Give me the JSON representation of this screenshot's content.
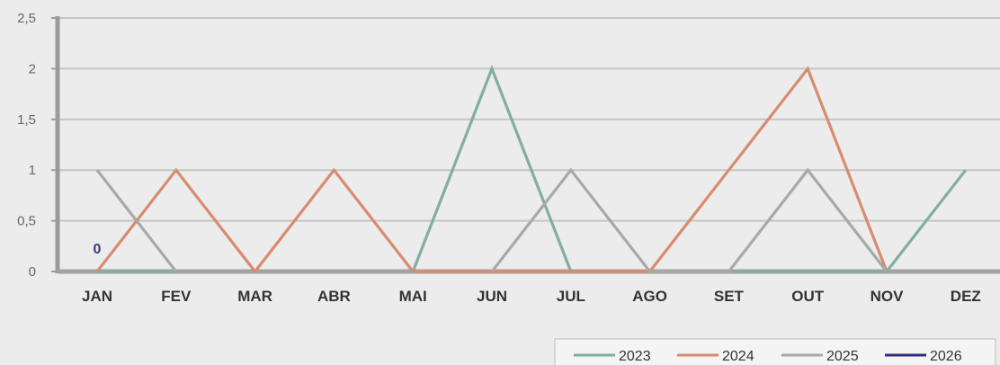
{
  "chart_data": {
    "type": "line",
    "categories": [
      "JAN",
      "FEV",
      "MAR",
      "ABR",
      "MAI",
      "JUN",
      "JUL",
      "AGO",
      "SET",
      "OUT",
      "NOV",
      "DEZ"
    ],
    "y_ticks": [
      "0",
      "0,5",
      "1",
      "1,5",
      "2",
      "2,5"
    ],
    "ylim": [
      0,
      2.5
    ],
    "grid": true,
    "legend_position": "bottom-right",
    "series": [
      {
        "name": "2023",
        "color": "#82aea0",
        "values": [
          0,
          0,
          null,
          null,
          0,
          2,
          0,
          null,
          0,
          0,
          0,
          1
        ]
      },
      {
        "name": "2024",
        "color": "#d78c6f",
        "values": [
          0,
          1,
          0,
          1,
          0,
          0,
          0,
          0,
          1,
          2,
          0,
          null
        ]
      },
      {
        "name": "2025",
        "color": "#a8a8a8",
        "values": [
          1,
          0,
          null,
          null,
          null,
          0,
          1,
          0,
          0,
          1,
          0,
          null
        ]
      },
      {
        "name": "2026",
        "color": "#2e2e7e",
        "values": [
          0,
          null,
          null,
          null,
          null,
          null,
          null,
          null,
          null,
          null,
          null,
          null
        ]
      }
    ],
    "data_labels": [
      {
        "series": "2026",
        "category": "JAN",
        "text": "0"
      }
    ]
  }
}
